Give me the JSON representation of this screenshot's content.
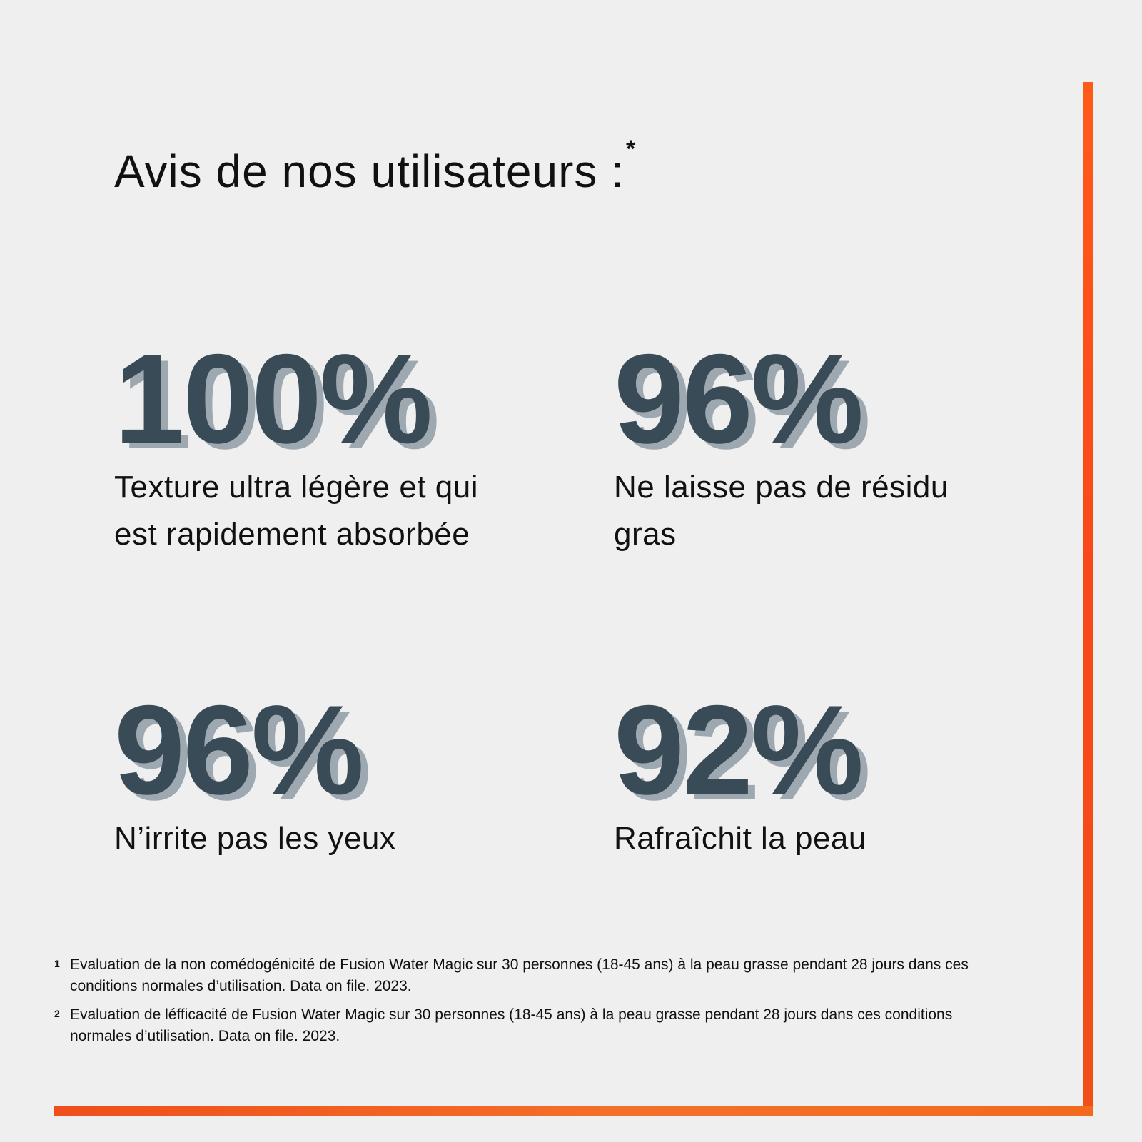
{
  "header": {
    "title": "Avis de nos utilisateurs :",
    "asterisk": "*"
  },
  "stats": [
    {
      "value": "100%",
      "label": "Texture ultra légère et qui est rapidement absorbée"
    },
    {
      "value": "96%",
      "label": "Ne laisse pas de résidu gras"
    },
    {
      "value": "96%",
      "label": "N’irrite pas les yeux"
    },
    {
      "value": "92%",
      "label": "Rafraîchit la peau"
    }
  ],
  "footnotes": [
    {
      "marker": "1",
      "text": "Evaluation de la non comédogénicité de Fusion Water Magic sur 30 personnes (18-45 ans) à la peau grasse pendant 28 jours dans ces conditions normales d’utilisation. Data on file. 2023."
    },
    {
      "marker": "2",
      "text": "Evaluation de léfficacité de Fusion Water Magic sur 30 personnes (18-45 ans) à la peau grasse pendant 28 jours dans ces conditions normales d’utilisation. Data on file. 2023."
    }
  ],
  "colors": {
    "background": "#efefef",
    "accent": "#f45a1d",
    "stat_main": "#394b57",
    "stat_shadow": "#9ea8b0",
    "text": "#111111"
  }
}
